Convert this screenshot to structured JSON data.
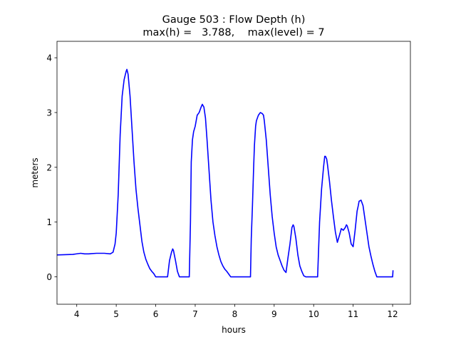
{
  "chart_data": {
    "type": "line",
    "title": "Gauge 503 : Flow Depth (h)",
    "subtitle": "max(h) =   3.788,    max(level) = 7",
    "xlabel": "hours",
    "ylabel": "meters",
    "xlim": [
      3.5,
      12.45
    ],
    "ylim": [
      -0.5,
      4.3
    ],
    "xticks": [
      4,
      5,
      6,
      7,
      8,
      9,
      10,
      11,
      12
    ],
    "yticks": [
      0,
      1,
      2,
      3,
      4
    ],
    "grid": false,
    "series": [
      {
        "color": "#0000ff",
        "x": [
          3.5,
          3.9,
          4.0,
          4.1,
          4.2,
          4.3,
          4.5,
          4.7,
          4.85,
          4.92,
          4.97,
          5.0,
          5.05,
          5.1,
          5.15,
          5.2,
          5.25,
          5.27,
          5.3,
          5.35,
          5.4,
          5.45,
          5.5,
          5.55,
          5.6,
          5.65,
          5.7,
          5.75,
          5.8,
          5.85,
          5.9,
          5.95,
          6.0,
          6.05,
          6.1,
          6.15,
          6.2,
          6.25,
          6.3,
          6.35,
          6.4,
          6.43,
          6.45,
          6.5,
          6.55,
          6.6,
          6.65,
          6.7,
          6.75,
          6.8,
          6.85,
          6.88,
          6.9,
          6.93,
          6.96,
          7.0,
          7.05,
          7.1,
          7.15,
          7.18,
          7.22,
          7.26,
          7.3,
          7.35,
          7.4,
          7.45,
          7.5,
          7.55,
          7.6,
          7.65,
          7.7,
          7.75,
          7.8,
          7.85,
          7.9,
          8.0,
          8.1,
          8.2,
          8.3,
          8.35,
          8.4,
          8.42,
          8.45,
          8.48,
          8.5,
          8.53,
          8.55,
          8.6,
          8.65,
          8.7,
          8.73,
          8.75,
          8.8,
          8.85,
          8.9,
          8.95,
          9.0,
          9.05,
          9.1,
          9.15,
          9.2,
          9.25,
          9.3,
          9.35,
          9.4,
          9.45,
          9.48,
          9.5,
          9.55,
          9.6,
          9.65,
          9.7,
          9.75,
          9.8,
          9.85,
          9.9,
          10.0,
          10.1,
          10.13,
          10.15,
          10.2,
          10.25,
          10.28,
          10.3,
          10.33,
          10.35,
          10.4,
          10.45,
          10.5,
          10.55,
          10.6,
          10.65,
          10.7,
          10.72,
          10.75,
          10.8,
          10.83,
          10.85,
          10.9,
          10.95,
          11.0,
          11.05,
          11.1,
          11.13,
          11.15,
          11.2,
          11.25,
          11.3,
          11.35,
          11.4,
          11.45,
          11.5,
          11.55,
          11.6,
          11.7,
          11.8,
          11.9,
          11.95,
          12.0,
          12.01
        ],
        "y": [
          0.4,
          0.41,
          0.42,
          0.43,
          0.42,
          0.42,
          0.43,
          0.43,
          0.42,
          0.45,
          0.6,
          0.8,
          1.5,
          2.6,
          3.3,
          3.6,
          3.75,
          3.788,
          3.7,
          3.3,
          2.7,
          2.1,
          1.6,
          1.25,
          0.95,
          0.65,
          0.45,
          0.32,
          0.23,
          0.15,
          0.1,
          0.06,
          0.0,
          0.0,
          0.0,
          0.0,
          0.0,
          0.0,
          0.0,
          0.3,
          0.45,
          0.51,
          0.48,
          0.3,
          0.1,
          0.0,
          0.0,
          0.0,
          0.0,
          0.0,
          0.0,
          1.0,
          2.1,
          2.5,
          2.65,
          2.75,
          2.95,
          3.0,
          3.1,
          3.15,
          3.1,
          2.9,
          2.5,
          1.95,
          1.4,
          1.0,
          0.75,
          0.55,
          0.4,
          0.28,
          0.2,
          0.14,
          0.1,
          0.05,
          0.0,
          0.0,
          0.0,
          0.0,
          0.0,
          0.0,
          0.0,
          0.7,
          1.3,
          2.0,
          2.4,
          2.75,
          2.85,
          2.95,
          3.0,
          2.98,
          2.95,
          2.85,
          2.5,
          2.0,
          1.5,
          1.1,
          0.8,
          0.55,
          0.4,
          0.3,
          0.2,
          0.12,
          0.08,
          0.35,
          0.6,
          0.9,
          0.95,
          0.92,
          0.7,
          0.4,
          0.2,
          0.1,
          0.02,
          0.0,
          0.0,
          0.0,
          0.0,
          0.0,
          0.6,
          1.0,
          1.6,
          2.0,
          2.2,
          2.2,
          2.15,
          2.05,
          1.75,
          1.4,
          1.1,
          0.82,
          0.63,
          0.75,
          0.88,
          0.87,
          0.85,
          0.9,
          0.95,
          0.93,
          0.8,
          0.6,
          0.55,
          0.85,
          1.2,
          1.3,
          1.38,
          1.4,
          1.3,
          1.05,
          0.8,
          0.55,
          0.38,
          0.23,
          0.1,
          0.0,
          0.0,
          0.0,
          0.0,
          0.0,
          0.0,
          0.12
        ]
      }
    ]
  }
}
